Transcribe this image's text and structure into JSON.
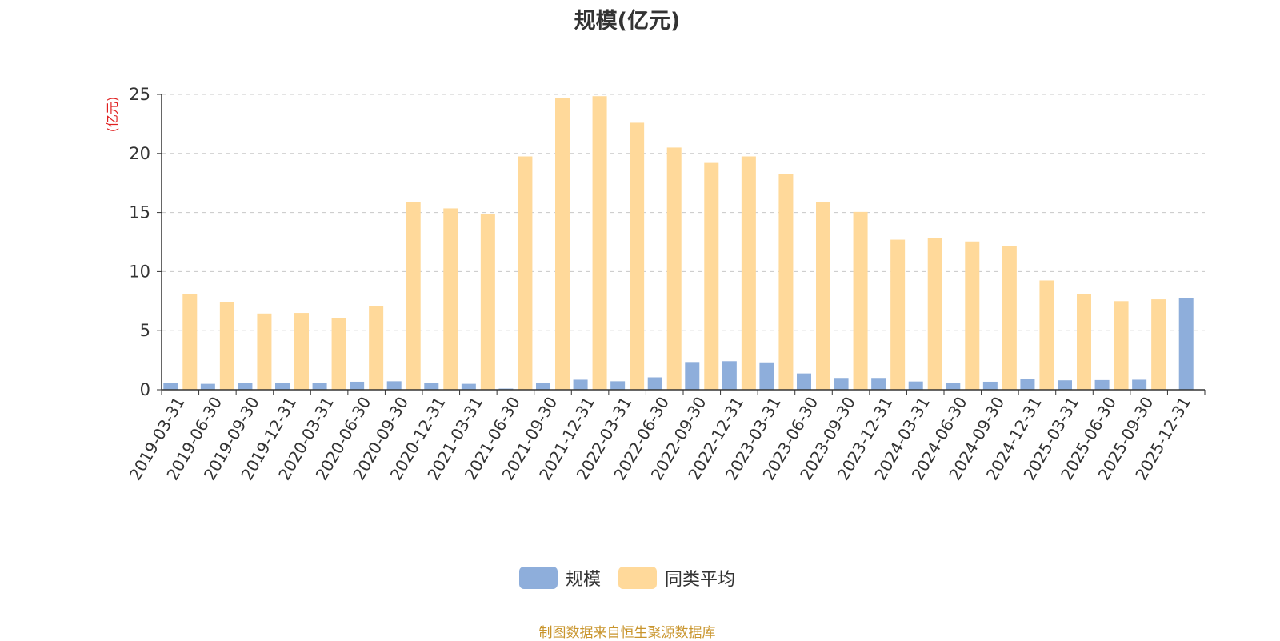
{
  "chart_data": {
    "type": "bar",
    "title": "规模(亿元)",
    "ylabel": "(亿元)",
    "xlabel": "",
    "ylim": [
      0,
      25
    ],
    "yticks": [
      0,
      5,
      10,
      15,
      20,
      25
    ],
    "grid": true,
    "legend_position": "bottom-center",
    "categories": [
      "2019-03-31",
      "2019-06-30",
      "2019-09-30",
      "2019-12-31",
      "2020-03-31",
      "2020-06-30",
      "2020-09-30",
      "2020-12-31",
      "2021-03-31",
      "2021-06-30",
      "2021-09-30",
      "2021-12-31",
      "2022-03-31",
      "2022-06-30",
      "2022-09-30",
      "2022-12-31",
      "2023-03-31",
      "2023-06-30",
      "2023-09-30",
      "2023-12-31",
      "2024-03-31",
      "2024-06-30",
      "2024-09-30",
      "2024-12-31",
      "2025-03-31",
      "2025-06-30",
      "2025-09-30",
      "2025-12-31"
    ],
    "series": [
      {
        "name": "规模",
        "color": "#8eaedb",
        "values": [
          0.55,
          0.5,
          0.55,
          0.58,
          0.6,
          0.68,
          0.72,
          0.6,
          0.5,
          0.1,
          0.58,
          0.85,
          0.72,
          1.05,
          2.35,
          2.42,
          2.32,
          1.38,
          1.0,
          1.0,
          0.7,
          0.58,
          0.68,
          0.92,
          0.8,
          0.82,
          0.85,
          7.75
        ]
      },
      {
        "name": "同类平均",
        "color": "#ffd99a",
        "values": [
          8.1,
          7.4,
          6.45,
          6.5,
          6.05,
          7.1,
          15.9,
          15.35,
          14.85,
          19.75,
          24.7,
          24.85,
          22.6,
          20.5,
          19.2,
          19.75,
          18.25,
          15.9,
          15.05,
          12.7,
          12.85,
          12.55,
          12.15,
          9.25,
          8.1,
          7.5,
          7.65,
          null
        ]
      }
    ]
  },
  "source_note": "制图数据来自恒生聚源数据库"
}
